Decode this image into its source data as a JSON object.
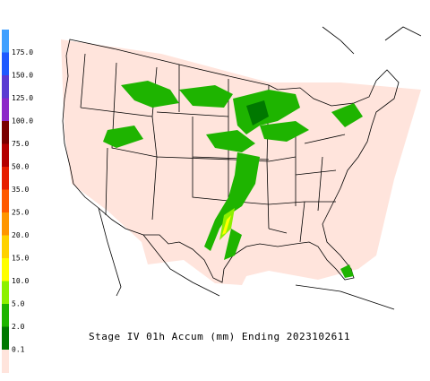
{
  "legend": {
    "labels": [
      "175.0",
      "150.0",
      "125.0",
      "100.0",
      "75.0",
      "50.0",
      "35.0",
      "25.0",
      "20.0",
      "15.0",
      "10.0",
      "5.0",
      "2.0",
      "0.1"
    ],
    "colors": [
      "#3fa0ff",
      "#1e5aff",
      "#5a3cd2",
      "#8c28c8",
      "#7a0000",
      "#b40000",
      "#e61e00",
      "#ff5a00",
      "#ff9600",
      "#ffd200",
      "#ffff00",
      "#8cf000",
      "#1eb400",
      "#007800",
      "#ffe4dc"
    ]
  },
  "caption": "Stage IV 01h Accum (mm) Ending 2023102611"
}
